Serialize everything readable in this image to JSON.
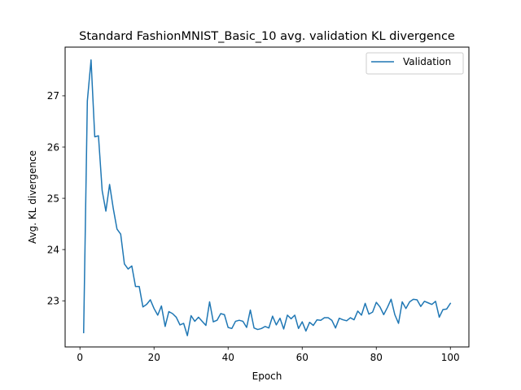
{
  "chart_data": {
    "type": "line",
    "title": "Standard FashionMNIST_Basic_10 avg. validation KL divergence",
    "xlabel": "Epoch",
    "ylabel": "Avg. KL divergence",
    "xlim": [
      -4,
      105
    ],
    "ylim": [
      22.1,
      27.95
    ],
    "xticks": [
      0,
      20,
      40,
      60,
      80,
      100
    ],
    "yticks": [
      23,
      24,
      25,
      26,
      27
    ],
    "grid": false,
    "legend": {
      "position": "top-right",
      "entries": [
        "Validation"
      ]
    },
    "series": [
      {
        "name": "Validation",
        "color": "#1f77b4",
        "x": [
          1,
          2,
          3,
          4,
          5,
          6,
          7,
          8,
          9,
          10,
          11,
          12,
          13,
          14,
          15,
          16,
          17,
          18,
          19,
          20,
          21,
          22,
          23,
          24,
          25,
          26,
          27,
          28,
          29,
          30,
          31,
          32,
          33,
          34,
          35,
          36,
          37,
          38,
          39,
          40,
          41,
          42,
          43,
          44,
          45,
          46,
          47,
          48,
          49,
          50,
          51,
          52,
          53,
          54,
          55,
          56,
          57,
          58,
          59,
          60,
          61,
          62,
          63,
          64,
          65,
          66,
          67,
          68,
          69,
          70,
          71,
          72,
          73,
          74,
          75,
          76,
          77,
          78,
          79,
          80,
          81,
          82,
          83,
          84,
          85,
          86,
          87,
          88,
          89,
          90,
          91,
          92,
          93,
          94,
          95,
          96,
          97,
          98,
          99,
          100
        ],
        "values": [
          22.38,
          26.9,
          27.7,
          26.2,
          26.22,
          25.15,
          24.75,
          25.27,
          24.8,
          24.4,
          24.3,
          23.72,
          23.62,
          23.68,
          23.28,
          23.28,
          22.88,
          22.93,
          23.02,
          22.85,
          22.72,
          22.9,
          22.5,
          22.79,
          22.75,
          22.68,
          22.53,
          22.56,
          22.32,
          22.71,
          22.6,
          22.68,
          22.6,
          22.52,
          22.98,
          22.59,
          22.62,
          22.75,
          22.73,
          22.48,
          22.46,
          22.6,
          22.62,
          22.6,
          22.48,
          22.82,
          22.47,
          22.44,
          22.46,
          22.5,
          22.47,
          22.7,
          22.53,
          22.66,
          22.45,
          22.72,
          22.65,
          22.72,
          22.46,
          22.59,
          22.41,
          22.58,
          22.52,
          22.63,
          22.62,
          22.67,
          22.67,
          22.62,
          22.47,
          22.66,
          22.63,
          22.61,
          22.67,
          22.63,
          22.8,
          22.72,
          22.95,
          22.74,
          22.78,
          22.97,
          22.88,
          22.73,
          22.87,
          23.03,
          22.73,
          22.56,
          22.98,
          22.85,
          22.98,
          23.03,
          23.02,
          22.89,
          22.99,
          22.96,
          22.93,
          22.99,
          22.68,
          22.83,
          22.84,
          22.95
        ]
      }
    ]
  }
}
